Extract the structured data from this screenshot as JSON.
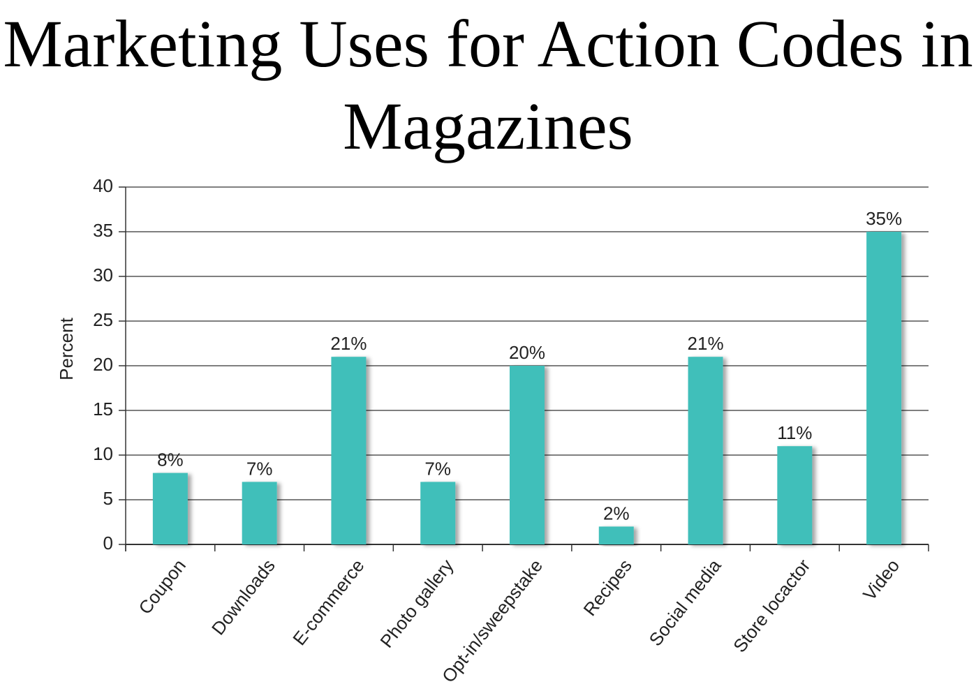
{
  "chart_data": {
    "type": "bar",
    "title": "Marketing Uses for Action Codes in Magazines",
    "y_label": "Percent",
    "categories": [
      "Coupon",
      "Downloads",
      "E-commerce",
      "Photo gallery",
      "Opt-in/sweepstake",
      "Recipes",
      "Social media",
      "Store locactor",
      "Video"
    ],
    "values": [
      8,
      7,
      21,
      7,
      20,
      2,
      21,
      11,
      35
    ],
    "value_labels": [
      "8%",
      "7%",
      "21%",
      "7%",
      "20%",
      "2%",
      "21%",
      "11%",
      "35%"
    ],
    "color": "#40bfba",
    "ylim": [
      0,
      40
    ],
    "yticks": [
      0,
      5,
      10,
      15,
      20,
      25,
      30,
      35,
      40
    ],
    "grid": true
  }
}
